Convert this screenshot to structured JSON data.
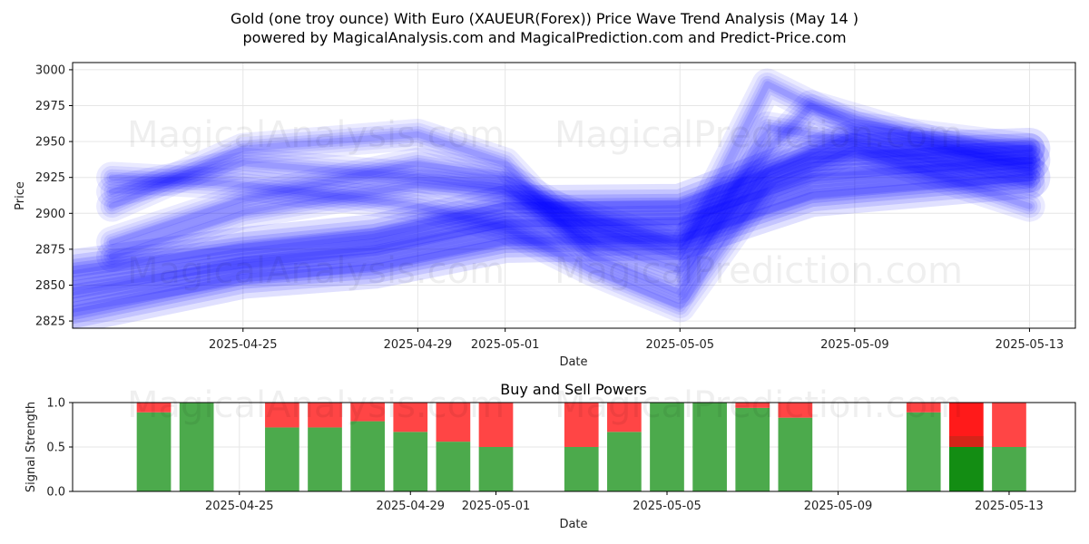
{
  "figure": {
    "title_line1": "Gold (one troy ounce) With Euro (XAUEUR(Forex)) Price Wave Trend Analysis (May 14 )",
    "title_line2": "powered by MagicalAnalysis.com and MagicalPrediction.com and Predict-Price.com",
    "watermarks": [
      "MagicalAnalysis.com",
      "MagicalPrediction.com"
    ]
  },
  "chart_data": [
    {
      "type": "area",
      "title": "",
      "xlabel": "Date",
      "ylabel": "Price",
      "ylim": [
        2820,
        3005
      ],
      "yticks": [
        2825,
        2850,
        2875,
        2900,
        2925,
        2950,
        2975,
        3000
      ],
      "x_ticks": [
        "2025-04-25",
        "2025-04-29",
        "2025-05-01",
        "2025-05-05",
        "2025-05-09",
        "2025-05-13"
      ],
      "x_range": [
        "2025-04-21",
        "2025-05-14"
      ],
      "grid": true,
      "band_color": "#0000ff",
      "series": [
        {
          "x": [
            "2025-04-21",
            "2025-04-25",
            "2025-04-28",
            "2025-05-01",
            "2025-05-05",
            "2025-05-08",
            "2025-05-13"
          ],
          "values": [
            2845,
            2865,
            2875,
            2893,
            2895,
            2925,
            2937
          ]
        },
        {
          "x": [
            "2025-04-21",
            "2025-04-25",
            "2025-04-28",
            "2025-05-01",
            "2025-05-05",
            "2025-05-08",
            "2025-05-13"
          ],
          "values": [
            2860,
            2876,
            2885,
            2905,
            2906,
            2940,
            2945
          ]
        },
        {
          "x": [
            "2025-04-21",
            "2025-04-25",
            "2025-04-28",
            "2025-05-01",
            "2025-05-05",
            "2025-05-08",
            "2025-05-13"
          ],
          "values": [
            2830,
            2855,
            2862,
            2880,
            2882,
            2912,
            2925
          ]
        },
        {
          "x": [
            "2025-04-22",
            "2025-04-25",
            "2025-04-29",
            "2025-05-01",
            "2025-05-03",
            "2025-05-05",
            "2025-05-07",
            "2025-05-09",
            "2025-05-13"
          ],
          "values": [
            2915,
            2935,
            2925,
            2918,
            2880,
            2860,
            2930,
            2955,
            2935
          ]
        },
        {
          "x": [
            "2025-04-22",
            "2025-04-25",
            "2025-04-29",
            "2025-05-01",
            "2025-05-03",
            "2025-05-05",
            "2025-05-07",
            "2025-05-09",
            "2025-05-13"
          ],
          "values": [
            2905,
            2945,
            2955,
            2935,
            2870,
            2845,
            2960,
            2950,
            2920
          ]
        },
        {
          "x": [
            "2025-04-22",
            "2025-04-25",
            "2025-04-29",
            "2025-05-01",
            "2025-05-03",
            "2025-05-05",
            "2025-05-07",
            "2025-05-09",
            "2025-05-13"
          ],
          "values": [
            2880,
            2910,
            2935,
            2925,
            2890,
            2870,
            2990,
            2960,
            2945
          ]
        },
        {
          "x": [
            "2025-04-22",
            "2025-04-25",
            "2025-04-29",
            "2025-05-01",
            "2025-05-03",
            "2025-05-05",
            "2025-05-07",
            "2025-05-09",
            "2025-05-13"
          ],
          "values": [
            2925,
            2920,
            2905,
            2890,
            2860,
            2835,
            2920,
            2945,
            2905
          ]
        },
        {
          "x": [
            "2025-04-22",
            "2025-04-25",
            "2025-04-29",
            "2025-05-01",
            "2025-05-05",
            "2025-05-08",
            "2025-05-13"
          ],
          "values": [
            2870,
            2900,
            2920,
            2915,
            2878,
            2975,
            2930
          ]
        }
      ]
    },
    {
      "type": "bar",
      "title": "Buy and Sell Powers",
      "xlabel": "Date",
      "ylabel": "Signal Strength",
      "ylim": [
        0,
        1.0
      ],
      "yticks": [
        0.0,
        0.5,
        1.0
      ],
      "ytick_labels": [
        "0.0",
        "0.5",
        "1.0"
      ],
      "x_ticks": [
        "2025-04-25",
        "2025-04-29",
        "2025-05-01",
        "2025-05-05",
        "2025-05-09",
        "2025-05-13"
      ],
      "x_range": [
        "2025-04-21",
        "2025-05-14"
      ],
      "buy_color": "#4caa4c",
      "sell_color": "#ff4545",
      "highlight_buy_color": "#138d13",
      "highlight_sell_color": "#ff1a1a",
      "bars": [
        {
          "date": "2025-04-23",
          "buy": 0.89
        },
        {
          "date": "2025-04-24",
          "buy": 1.0
        },
        {
          "date": "2025-04-26",
          "buy": 0.72
        },
        {
          "date": "2025-04-27",
          "buy": 0.72
        },
        {
          "date": "2025-04-28",
          "buy": 0.79
        },
        {
          "date": "2025-04-29",
          "buy": 0.67
        },
        {
          "date": "2025-04-30",
          "buy": 0.56
        },
        {
          "date": "2025-05-01",
          "buy": 0.5
        },
        {
          "date": "2025-05-03",
          "buy": 0.5
        },
        {
          "date": "2025-05-04",
          "buy": 0.67
        },
        {
          "date": "2025-05-05",
          "buy": 1.0
        },
        {
          "date": "2025-05-06",
          "buy": 1.0
        },
        {
          "date": "2025-05-07",
          "buy": 0.94
        },
        {
          "date": "2025-05-08",
          "buy": 0.83
        },
        {
          "date": "2025-05-11",
          "buy": 0.89
        },
        {
          "date": "2025-05-12",
          "buy": 0.5,
          "highlight": true
        },
        {
          "date": "2025-05-13",
          "buy": 0.5
        }
      ]
    }
  ]
}
